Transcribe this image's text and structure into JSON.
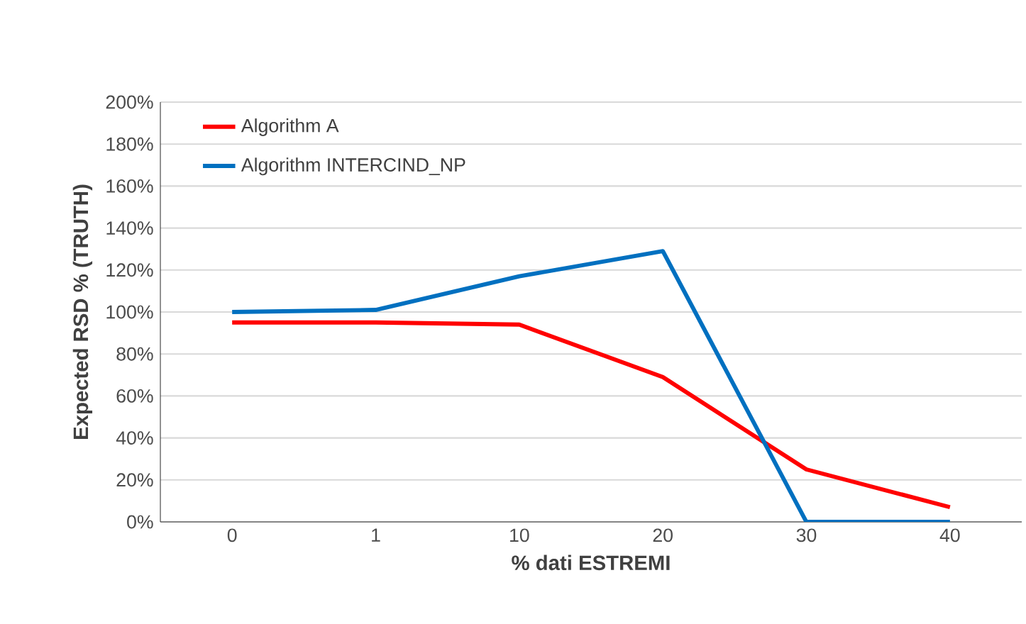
{
  "chart_data": {
    "type": "line",
    "xlabel": "% dati ESTREMI",
    "ylabel": "Expected RSD % (TRUTH)",
    "categories": [
      "0",
      "1",
      "10",
      "20",
      "30",
      "40"
    ],
    "series": [
      {
        "name": "Algorithm A",
        "color": "#ff0000",
        "values": [
          95,
          95,
          94,
          69,
          25,
          7
        ]
      },
      {
        "name": "Algorithm INTERCIND_NP",
        "color": "#0070c0",
        "values": [
          100,
          101,
          117,
          129,
          0,
          0
        ]
      }
    ],
    "ylim": [
      0,
      200
    ],
    "yticks": [
      {
        "value": 0,
        "label": "0%"
      },
      {
        "value": 20,
        "label": "20%"
      },
      {
        "value": 40,
        "label": "40%"
      },
      {
        "value": 60,
        "label": "60%"
      },
      {
        "value": 80,
        "label": "80%"
      },
      {
        "value": 100,
        "label": "100%"
      },
      {
        "value": 120,
        "label": "120%"
      },
      {
        "value": 140,
        "label": "140%"
      },
      {
        "value": 160,
        "label": "160%"
      },
      {
        "value": 180,
        "label": "180%"
      },
      {
        "value": 200,
        "label": "200%"
      }
    ],
    "grid": "y",
    "legend": "top left",
    "marker": "none",
    "line_style": "solid"
  }
}
